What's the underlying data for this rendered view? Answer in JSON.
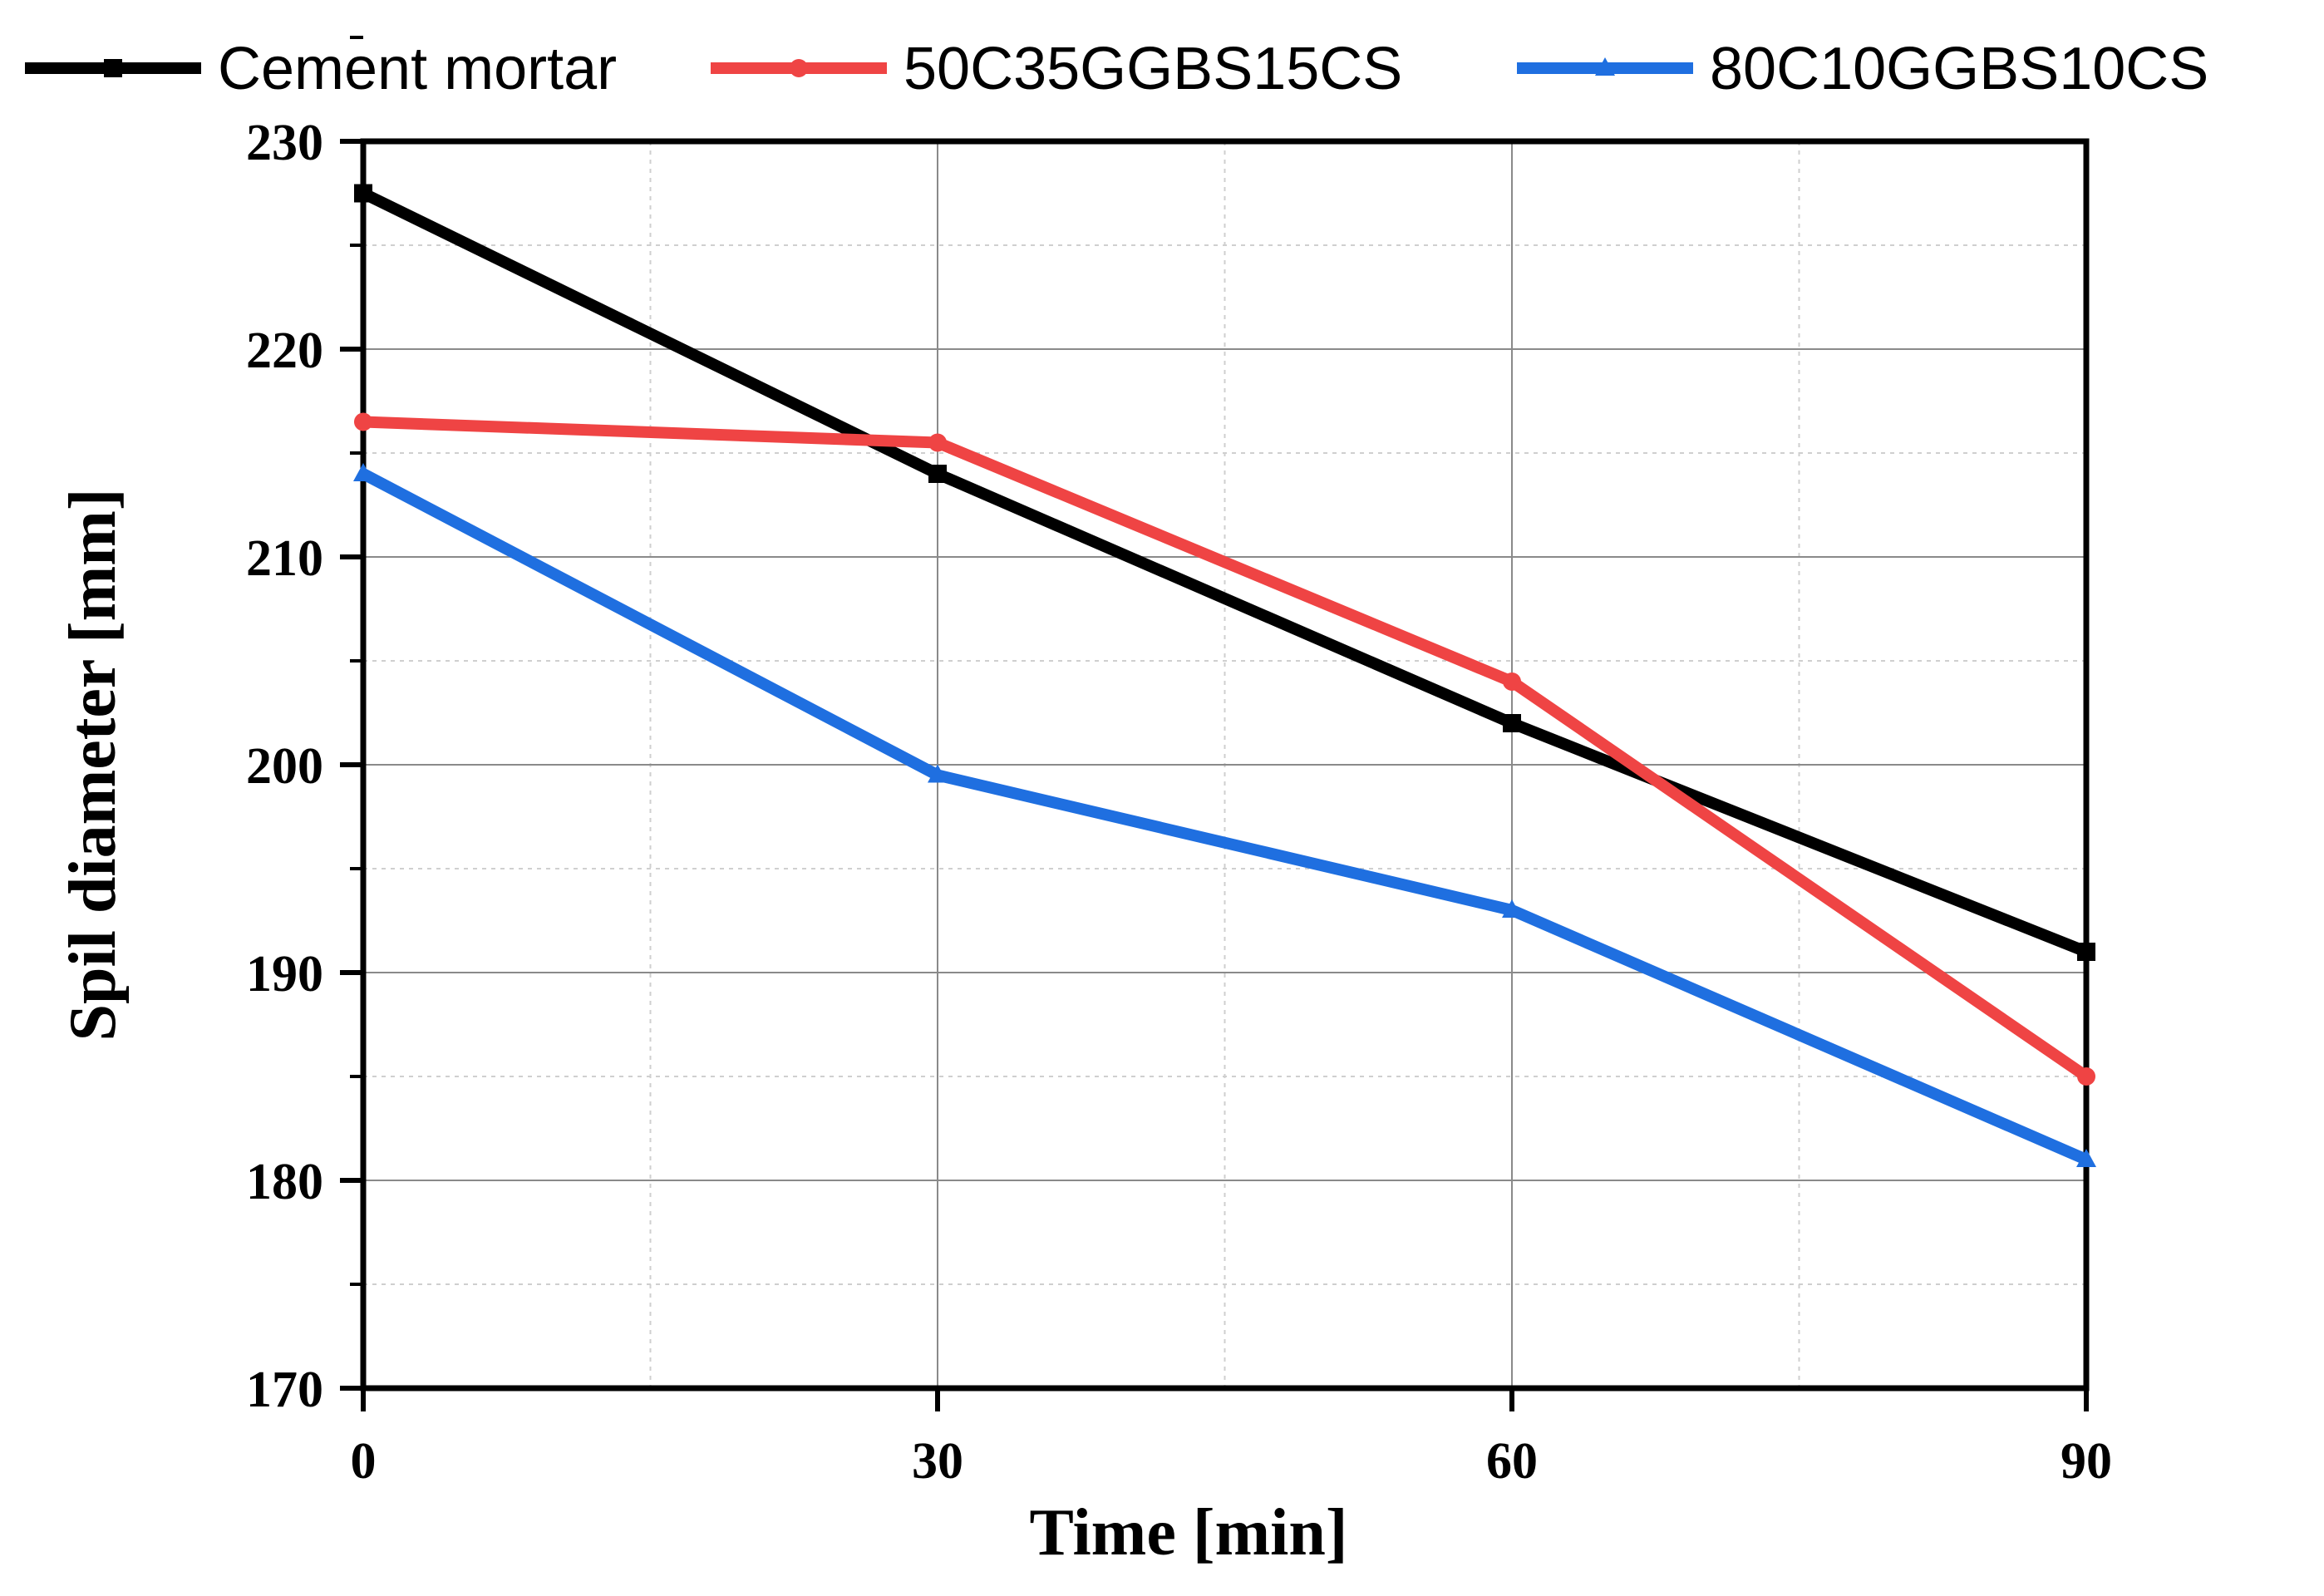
{
  "chart_data": {
    "type": "line",
    "title": "",
    "xlabel": "Time [min]",
    "ylabel": "Spil diameter [mm]",
    "x": [
      0,
      30,
      60,
      90
    ],
    "x_ticks": [
      "0",
      "30",
      "60",
      "90"
    ],
    "y_ticks": [
      "170",
      "180",
      "190",
      "200",
      "210",
      "220",
      "230"
    ],
    "xlim": [
      0,
      90
    ],
    "ylim": [
      170,
      230
    ],
    "grid": true,
    "legend_position": "top",
    "series": [
      {
        "name": "Cement mortar",
        "values": [
          227.5,
          214,
          202,
          191
        ],
        "color": "#000000",
        "marker": "square"
      },
      {
        "name": "50C35GGBS15CS",
        "values": [
          216.5,
          215.5,
          204,
          185
        ],
        "color": "#ef4444",
        "marker": "circle"
      },
      {
        "name": "80C10GGBS10CS",
        "values": [
          214,
          199.5,
          193,
          181
        ],
        "color": "#1f6fe0",
        "marker": "triangle"
      }
    ]
  }
}
